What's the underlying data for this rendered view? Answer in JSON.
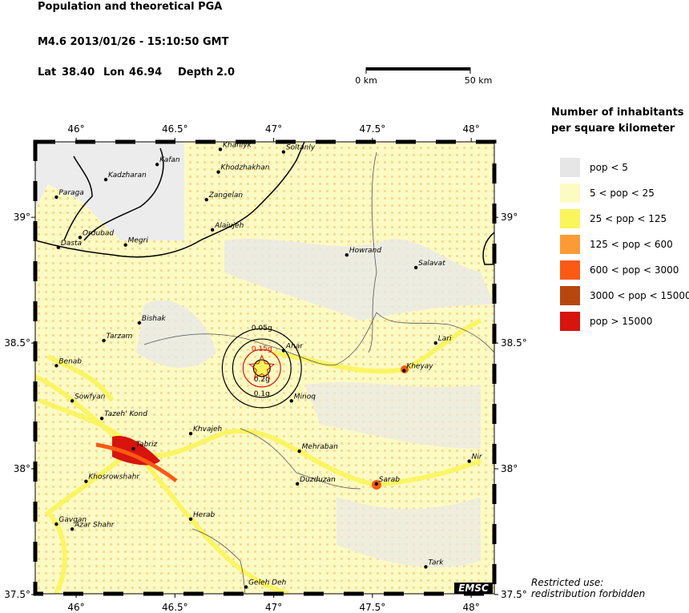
{
  "header": {
    "title": "Population and theoretical PGA",
    "event": "M4.6  2013/01/26 - 15:10:50 GMT",
    "lat_label": "Lat",
    "lat": "38.40",
    "lon_label": "Lon",
    "lon": "46.94",
    "depth_label": "Depth",
    "depth": "2.0"
  },
  "scale": {
    "start_label": "0 km",
    "end_label": "50 km"
  },
  "map": {
    "lon_lim": [
      45.793,
      48.117
    ],
    "lat_lim": [
      37.503,
      39.3
    ],
    "lon_ticks": [
      {
        "value": 46,
        "label": "46°"
      },
      {
        "value": 46.5,
        "label": "46.5°"
      },
      {
        "value": 47,
        "label": "47°"
      },
      {
        "value": 47.5,
        "label": "47.5°"
      },
      {
        "value": 48,
        "label": "48°"
      }
    ],
    "lat_ticks": [
      {
        "value": 37.5,
        "label": "37.5°"
      },
      {
        "value": 38,
        "label": "38°"
      },
      {
        "value": 38.5,
        "label": "38.5°"
      },
      {
        "value": 39,
        "label": "39°"
      }
    ],
    "contours": [
      {
        "label": "0.05g",
        "radius_km": 19
      },
      {
        "label": "0.1g",
        "radius_km": 14
      },
      {
        "label": "0.15g",
        "radius_km": 9
      },
      {
        "label": "0.2g",
        "radius_km": 4
      }
    ],
    "cities": [
      {
        "name": "Khanlyk",
        "lon": 46.73,
        "lat": 39.27
      },
      {
        "name": "Soltanly",
        "lon": 47.05,
        "lat": 39.26
      },
      {
        "name": "Kafan",
        "lon": 46.41,
        "lat": 39.21
      },
      {
        "name": "Kadzharan",
        "lon": 46.15,
        "lat": 39.15
      },
      {
        "name": "Khodzhakhan",
        "lon": 46.72,
        "lat": 39.18
      },
      {
        "name": "Paraga",
        "lon": 45.9,
        "lat": 39.08
      },
      {
        "name": "Zangelan",
        "lon": 46.66,
        "lat": 39.07
      },
      {
        "name": "Alajujeh",
        "lon": 46.69,
        "lat": 38.95
      },
      {
        "name": "Ordubad",
        "lon": 46.02,
        "lat": 38.92
      },
      {
        "name": "Megri",
        "lon": 46.25,
        "lat": 38.89
      },
      {
        "name": "Dasta",
        "lon": 45.91,
        "lat": 38.88
      },
      {
        "name": "Howrand",
        "lon": 47.37,
        "lat": 38.85
      },
      {
        "name": "Salavat",
        "lon": 47.72,
        "lat": 38.8
      },
      {
        "name": "Bishak",
        "lon": 46.32,
        "lat": 38.58
      },
      {
        "name": "Tarzam",
        "lon": 46.14,
        "lat": 38.51
      },
      {
        "name": "Ahar",
        "lon": 47.05,
        "lat": 38.47
      },
      {
        "name": "Lari",
        "lon": 47.82,
        "lat": 38.5
      },
      {
        "name": "Benab",
        "lon": 45.9,
        "lat": 38.41
      },
      {
        "name": "Kheyay",
        "lon": 47.66,
        "lat": 38.39
      },
      {
        "name": "Minoq",
        "lon": 47.09,
        "lat": 38.27
      },
      {
        "name": "Sowfyan",
        "lon": 45.98,
        "lat": 38.27
      },
      {
        "name": "Tazeh' Kond",
        "lon": 46.13,
        "lat": 38.2
      },
      {
        "name": "Khvajeh",
        "lon": 46.58,
        "lat": 38.14
      },
      {
        "name": "Tabriz",
        "lon": 46.29,
        "lat": 38.08
      },
      {
        "name": "Mehraban",
        "lon": 47.13,
        "lat": 38.07
      },
      {
        "name": "Nir",
        "lon": 47.99,
        "lat": 38.03
      },
      {
        "name": "Khosrowshahr",
        "lon": 46.05,
        "lat": 37.95
      },
      {
        "name": "Duzduzan",
        "lon": 47.12,
        "lat": 37.94
      },
      {
        "name": "Sarab",
        "lon": 47.52,
        "lat": 37.94
      },
      {
        "name": "Herab",
        "lon": 46.58,
        "lat": 37.8
      },
      {
        "name": "Gavgan",
        "lon": 45.9,
        "lat": 37.78
      },
      {
        "name": "Azar Shahr",
        "lon": 45.98,
        "lat": 37.76
      },
      {
        "name": "Tark",
        "lon": 47.77,
        "lat": 37.61
      },
      {
        "name": "Geleh Deh",
        "lon": 46.86,
        "lat": 37.53
      }
    ],
    "logo": "EMSC"
  },
  "legend": {
    "title_line1": "Number of inhabitants",
    "title_line2": "per square kilometer",
    "entries": [
      {
        "label": "pop < 5",
        "color": "#e6e6e6"
      },
      {
        "label": "5 < pop < 25",
        "color": "#fdfbc4"
      },
      {
        "label": "25 < pop < 125",
        "color": "#faf55a"
      },
      {
        "label": "125 < pop < 600",
        "color": "#fc9b36"
      },
      {
        "label": "600 < pop < 3000",
        "color": "#fa5a14"
      },
      {
        "label": "3000 < pop < 15000",
        "color": "#b8460f"
      },
      {
        "label": "pop > 15000",
        "color": "#d7140e"
      }
    ]
  },
  "footer": {
    "line1": "Restricted use:",
    "line2": "redistribution forbidden"
  }
}
